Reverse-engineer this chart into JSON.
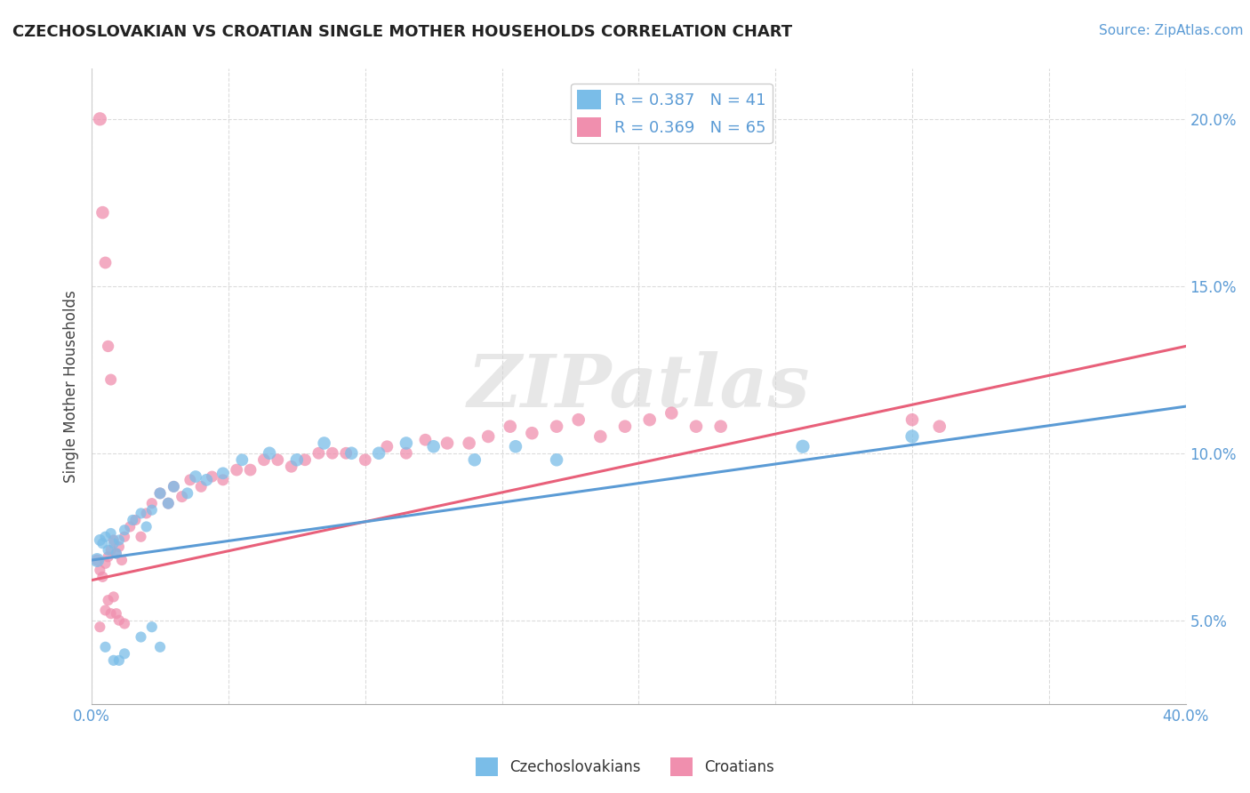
{
  "title": "CZECHOSLOVAKIAN VS CROATIAN SINGLE MOTHER HOUSEHOLDS CORRELATION CHART",
  "source_text": "Source: ZipAtlas.com",
  "ylabel": "Single Mother Households",
  "xlim": [
    0.0,
    0.4
  ],
  "ylim": [
    0.025,
    0.215
  ],
  "yticks": [
    0.05,
    0.1,
    0.15,
    0.2
  ],
  "ytick_labels": [
    "5.0%",
    "10.0%",
    "15.0%",
    "20.0%"
  ],
  "xtick_labels": [
    "0.0%",
    "",
    "",
    "",
    "",
    "",
    "",
    "",
    "40.0%"
  ],
  "czech_color": "#7ABDE8",
  "croatian_color": "#F08FAE",
  "czech_R": 0.387,
  "czech_N": 41,
  "croatian_R": 0.369,
  "croatian_N": 65,
  "watermark": "ZIPatlas",
  "background_color": "#ffffff",
  "grid_color": "#cccccc",
  "legend_text_color": "#5b9bd5",
  "tick_color": "#5b9bd5",
  "czech_line_color": "#5b9bd5",
  "croatian_line_color": "#E8607A",
  "czech_trend": {
    "slope": 0.115,
    "intercept": 0.068
  },
  "croatian_trend": {
    "slope": 0.175,
    "intercept": 0.062
  },
  "czech_points": [
    [
      0.002,
      0.068
    ],
    [
      0.003,
      0.074
    ],
    [
      0.004,
      0.073
    ],
    [
      0.005,
      0.075
    ],
    [
      0.006,
      0.071
    ],
    [
      0.007,
      0.076
    ],
    [
      0.008,
      0.073
    ],
    [
      0.009,
      0.07
    ],
    [
      0.01,
      0.074
    ],
    [
      0.012,
      0.077
    ],
    [
      0.015,
      0.08
    ],
    [
      0.018,
      0.082
    ],
    [
      0.02,
      0.078
    ],
    [
      0.022,
      0.083
    ],
    [
      0.025,
      0.088
    ],
    [
      0.028,
      0.085
    ],
    [
      0.03,
      0.09
    ],
    [
      0.035,
      0.088
    ],
    [
      0.038,
      0.093
    ],
    [
      0.042,
      0.092
    ],
    [
      0.048,
      0.094
    ],
    [
      0.055,
      0.098
    ],
    [
      0.065,
      0.1
    ],
    [
      0.075,
      0.098
    ],
    [
      0.085,
      0.103
    ],
    [
      0.095,
      0.1
    ],
    [
      0.105,
      0.1
    ],
    [
      0.115,
      0.103
    ],
    [
      0.125,
      0.102
    ],
    [
      0.14,
      0.098
    ],
    [
      0.155,
      0.102
    ],
    [
      0.17,
      0.098
    ],
    [
      0.005,
      0.042
    ],
    [
      0.008,
      0.038
    ],
    [
      0.01,
      0.038
    ],
    [
      0.012,
      0.04
    ],
    [
      0.018,
      0.045
    ],
    [
      0.022,
      0.048
    ],
    [
      0.025,
      0.042
    ],
    [
      0.3,
      0.105
    ],
    [
      0.26,
      0.102
    ]
  ],
  "czech_sizes": [
    60,
    40,
    35,
    35,
    35,
    35,
    35,
    35,
    35,
    35,
    35,
    35,
    35,
    35,
    40,
    40,
    40,
    40,
    45,
    45,
    45,
    45,
    50,
    50,
    50,
    50,
    50,
    50,
    50,
    50,
    50,
    50,
    35,
    35,
    35,
    35,
    35,
    35,
    35,
    55,
    55
  ],
  "croatian_points": [
    [
      0.002,
      0.068
    ],
    [
      0.003,
      0.065
    ],
    [
      0.004,
      0.063
    ],
    [
      0.005,
      0.067
    ],
    [
      0.006,
      0.069
    ],
    [
      0.007,
      0.071
    ],
    [
      0.008,
      0.074
    ],
    [
      0.009,
      0.07
    ],
    [
      0.01,
      0.072
    ],
    [
      0.011,
      0.068
    ],
    [
      0.012,
      0.075
    ],
    [
      0.014,
      0.078
    ],
    [
      0.016,
      0.08
    ],
    [
      0.018,
      0.075
    ],
    [
      0.02,
      0.082
    ],
    [
      0.022,
      0.085
    ],
    [
      0.025,
      0.088
    ],
    [
      0.028,
      0.085
    ],
    [
      0.03,
      0.09
    ],
    [
      0.033,
      0.087
    ],
    [
      0.036,
      0.092
    ],
    [
      0.04,
      0.09
    ],
    [
      0.044,
      0.093
    ],
    [
      0.048,
      0.092
    ],
    [
      0.053,
      0.095
    ],
    [
      0.058,
      0.095
    ],
    [
      0.063,
      0.098
    ],
    [
      0.068,
      0.098
    ],
    [
      0.073,
      0.096
    ],
    [
      0.078,
      0.098
    ],
    [
      0.083,
      0.1
    ],
    [
      0.088,
      0.1
    ],
    [
      0.093,
      0.1
    ],
    [
      0.1,
      0.098
    ],
    [
      0.108,
      0.102
    ],
    [
      0.115,
      0.1
    ],
    [
      0.122,
      0.104
    ],
    [
      0.13,
      0.103
    ],
    [
      0.138,
      0.103
    ],
    [
      0.145,
      0.105
    ],
    [
      0.153,
      0.108
    ],
    [
      0.161,
      0.106
    ],
    [
      0.17,
      0.108
    ],
    [
      0.178,
      0.11
    ],
    [
      0.186,
      0.105
    ],
    [
      0.195,
      0.108
    ],
    [
      0.204,
      0.11
    ],
    [
      0.212,
      0.112
    ],
    [
      0.221,
      0.108
    ],
    [
      0.23,
      0.108
    ],
    [
      0.003,
      0.2
    ],
    [
      0.004,
      0.172
    ],
    [
      0.005,
      0.157
    ],
    [
      0.006,
      0.132
    ],
    [
      0.007,
      0.122
    ],
    [
      0.003,
      0.048
    ],
    [
      0.005,
      0.053
    ],
    [
      0.006,
      0.056
    ],
    [
      0.007,
      0.052
    ],
    [
      0.008,
      0.057
    ],
    [
      0.009,
      0.052
    ],
    [
      0.01,
      0.05
    ],
    [
      0.012,
      0.049
    ],
    [
      0.3,
      0.11
    ],
    [
      0.31,
      0.108
    ]
  ],
  "croatian_sizes": [
    40,
    35,
    35,
    35,
    35,
    35,
    35,
    35,
    35,
    35,
    35,
    35,
    35,
    35,
    35,
    35,
    40,
    40,
    40,
    40,
    40,
    40,
    40,
    40,
    45,
    45,
    45,
    45,
    45,
    45,
    45,
    45,
    45,
    45,
    45,
    45,
    45,
    50,
    50,
    50,
    50,
    50,
    50,
    50,
    50,
    50,
    50,
    50,
    50,
    50,
    55,
    50,
    45,
    42,
    40,
    35,
    35,
    35,
    35,
    35,
    35,
    35,
    35,
    50,
    50
  ]
}
